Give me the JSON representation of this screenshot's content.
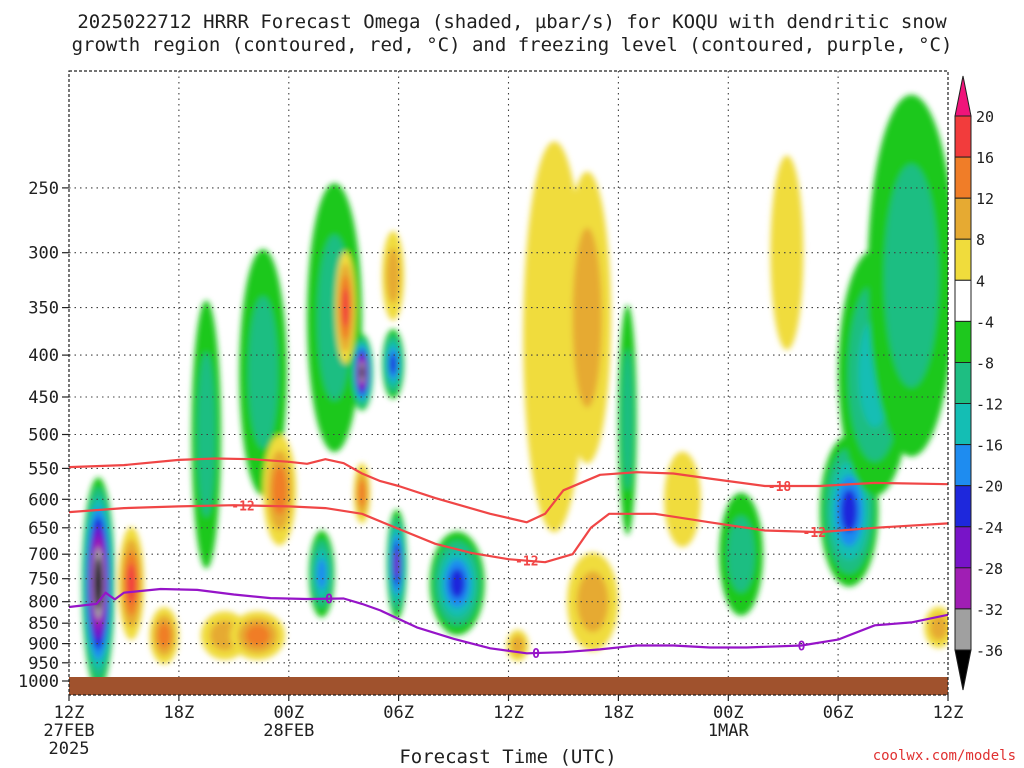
{
  "chart_data": {
    "type": "heatmap",
    "title": "2025022712 HRRR Forecast Omega (shaded, µbar/s) for KOQU with dendritic snow growth region (contoured, red, °C) and freezing level (contoured, purple, °C)",
    "title_lines": [
      "2025022712 HRRR Forecast Omega (shaded, µbar/s) for KOQU with dendritic snow",
      "growth region (contoured, red, °C) and freezing level (contoured, purple, °C)"
    ],
    "xlabel": "Forecast Time (UTC)",
    "ylabel": "",
    "credit": "coolwx.com/models",
    "x_range_hours": [
      0,
      48
    ],
    "y_range_hpa": [
      1040,
      180
    ],
    "y_scale": "log-pressure",
    "grid": true,
    "x_ticks": [
      {
        "hour": 0,
        "label": "12Z",
        "date": "27FEB",
        "year": "2025"
      },
      {
        "hour": 6,
        "label": "18Z",
        "date": "",
        "year": ""
      },
      {
        "hour": 12,
        "label": "00Z",
        "date": "28FEB",
        "year": ""
      },
      {
        "hour": 18,
        "label": "06Z",
        "date": "",
        "year": ""
      },
      {
        "hour": 24,
        "label": "12Z",
        "date": "",
        "year": ""
      },
      {
        "hour": 30,
        "label": "18Z",
        "date": "",
        "year": ""
      },
      {
        "hour": 36,
        "label": "00Z",
        "date": "1MAR",
        "year": ""
      },
      {
        "hour": 42,
        "label": "06Z",
        "date": "",
        "year": ""
      },
      {
        "hour": 48,
        "label": "12Z",
        "date": "",
        "year": ""
      }
    ],
    "y_ticks": [
      250,
      300,
      350,
      400,
      450,
      500,
      550,
      600,
      650,
      700,
      750,
      800,
      850,
      900,
      950,
      1000
    ],
    "colorbar": {
      "labels": [
        "20",
        "16",
        "12",
        "8",
        "4",
        "-4",
        "-8",
        "-12",
        "-16",
        "-20",
        "-24",
        "-28",
        "-32",
        "-36"
      ],
      "bins": [
        {
          "min": 20,
          "max": null,
          "color": "#f0147a"
        },
        {
          "min": 16,
          "max": 20,
          "color": "#f23c3c"
        },
        {
          "min": 12,
          "max": 16,
          "color": "#f07d28"
        },
        {
          "min": 8,
          "max": 12,
          "color": "#e6aa32"
        },
        {
          "min": 4,
          "max": 8,
          "color": "#f0dc3c"
        },
        {
          "min": -4,
          "max": 4,
          "color": "#ffffff"
        },
        {
          "min": -8,
          "max": -4,
          "color": "#1ec81e"
        },
        {
          "min": -12,
          "max": -8,
          "color": "#1ebe82"
        },
        {
          "min": -16,
          "max": -12,
          "color": "#14beb4"
        },
        {
          "min": -20,
          "max": -16,
          "color": "#1e8cf0"
        },
        {
          "min": -24,
          "max": -20,
          "color": "#1e28dc"
        },
        {
          "min": -28,
          "max": -24,
          "color": "#7814c8"
        },
        {
          "min": -32,
          "max": -28,
          "color": "#a01eb4"
        },
        {
          "min": -36,
          "max": -32,
          "color": "#a0a0a0"
        },
        {
          "min": null,
          "max": -36,
          "color": "#000000"
        }
      ]
    },
    "omega_features": [
      {
        "hour": 1.6,
        "pressure": 760,
        "dh": 0.9,
        "dp": 220,
        "value": -40
      },
      {
        "hour": 3.4,
        "pressure": 760,
        "dh": 0.7,
        "dp": 120,
        "value": 18
      },
      {
        "hour": 5.2,
        "pressure": 880,
        "dh": 0.8,
        "dp": 70,
        "value": 12
      },
      {
        "hour": 7.5,
        "pressure": 500,
        "dh": 0.8,
        "dp": 180,
        "value": -11
      },
      {
        "hour": 8.5,
        "pressure": 880,
        "dh": 1.3,
        "dp": 60,
        "value": 10
      },
      {
        "hour": 10.3,
        "pressure": 880,
        "dh": 1.5,
        "dp": 60,
        "value": 12
      },
      {
        "hour": 10.6,
        "pressure": 420,
        "dh": 1.3,
        "dp": 140,
        "value": -10
      },
      {
        "hour": 11.5,
        "pressure": 585,
        "dh": 0.9,
        "dp": 90,
        "value": 14
      },
      {
        "hour": 13.8,
        "pressure": 740,
        "dh": 0.7,
        "dp": 90,
        "value": -18
      },
      {
        "hour": 14.5,
        "pressure": 360,
        "dh": 1.5,
        "dp": 130,
        "value": -10
      },
      {
        "hour": 15.1,
        "pressure": 350,
        "dh": 0.55,
        "dp": 55,
        "value": 18
      },
      {
        "hour": 16.0,
        "pressure": 420,
        "dh": 0.6,
        "dp": 45,
        "value": -38
      },
      {
        "hour": 16.0,
        "pressure": 590,
        "dh": 0.45,
        "dp": 50,
        "value": 12
      },
      {
        "hour": 17.7,
        "pressure": 410,
        "dh": 0.6,
        "dp": 40,
        "value": -20
      },
      {
        "hour": 17.7,
        "pressure": 320,
        "dh": 0.6,
        "dp": 40,
        "value": 10
      },
      {
        "hour": 17.9,
        "pressure": 720,
        "dh": 0.55,
        "dp": 110,
        "value": -24
      },
      {
        "hour": 21.2,
        "pressure": 760,
        "dh": 1.5,
        "dp": 110,
        "value": -22
      },
      {
        "hour": 24.5,
        "pressure": 905,
        "dh": 0.6,
        "dp": 40,
        "value": 10
      },
      {
        "hour": 26.5,
        "pressure": 380,
        "dh": 1.7,
        "dp": 190,
        "value": 7
      },
      {
        "hour": 28.3,
        "pressure": 360,
        "dh": 1.3,
        "dp": 140,
        "value": 11
      },
      {
        "hour": 28.6,
        "pressure": 800,
        "dh": 1.4,
        "dp": 110,
        "value": 10
      },
      {
        "hour": 30.5,
        "pressure": 480,
        "dh": 0.5,
        "dp": 150,
        "value": -9
      },
      {
        "hour": 33.5,
        "pressure": 600,
        "dh": 1.0,
        "dp": 80,
        "value": 5
      },
      {
        "hour": 36.7,
        "pressure": 700,
        "dh": 1.2,
        "dp": 120,
        "value": -9
      },
      {
        "hour": 39.2,
        "pressure": 300,
        "dh": 0.9,
        "dp": 80,
        "value": 6
      },
      {
        "hour": 42.6,
        "pressure": 620,
        "dh": 1.6,
        "dp": 130,
        "value": -22
      },
      {
        "hour": 44.0,
        "pressure": 420,
        "dh": 2.0,
        "dp": 140,
        "value": -15
      },
      {
        "hour": 46.0,
        "pressure": 320,
        "dh": 2.4,
        "dp": 150,
        "value": -10
      },
      {
        "hour": 47.5,
        "pressure": 860,
        "dh": 0.8,
        "dp": 50,
        "value": 8
      }
    ],
    "series": [
      {
        "name": "-18",
        "color": "#f04646",
        "label_hour": 38.8,
        "points": [
          [
            0,
            548
          ],
          [
            3,
            545
          ],
          [
            6,
            537
          ],
          [
            8,
            535
          ],
          [
            10,
            536
          ],
          [
            12,
            540
          ],
          [
            13,
            543
          ],
          [
            14,
            536
          ],
          [
            15,
            542
          ],
          [
            16,
            558
          ],
          [
            17,
            570
          ],
          [
            18,
            578
          ],
          [
            20,
            598
          ],
          [
            23,
            625
          ],
          [
            25,
            640
          ],
          [
            26,
            625
          ],
          [
            27,
            585
          ],
          [
            29,
            560
          ],
          [
            31,
            556
          ],
          [
            33,
            558
          ],
          [
            35,
            566
          ],
          [
            38,
            578
          ],
          [
            41,
            578
          ],
          [
            44,
            573
          ],
          [
            48,
            575
          ]
        ]
      },
      {
        "name": "-12",
        "color": "#f04646",
        "label_hour": 9.5,
        "points": [
          [
            0,
            622
          ],
          [
            3,
            615
          ],
          [
            6,
            612
          ],
          [
            9,
            610
          ],
          [
            12,
            612
          ],
          [
            14,
            615
          ],
          [
            16,
            625
          ],
          [
            18,
            652
          ],
          [
            20,
            680
          ],
          [
            22,
            698
          ],
          [
            24,
            710
          ],
          [
            26,
            716
          ],
          [
            27.5,
            700
          ],
          [
            28.5,
            650
          ],
          [
            29.5,
            625
          ],
          [
            32,
            625
          ],
          [
            35,
            640
          ],
          [
            38,
            655
          ],
          [
            41,
            658
          ],
          [
            44,
            650
          ],
          [
            48,
            642
          ]
        ],
        "extra_labels": [
          25.0,
          40.7
        ]
      },
      {
        "name": "0",
        "color": "#9614c8",
        "label_hour": 14.2,
        "points": [
          [
            0,
            812
          ],
          [
            1.5,
            805
          ],
          [
            2,
            780
          ],
          [
            2.5,
            795
          ],
          [
            3,
            780
          ],
          [
            5,
            772
          ],
          [
            7,
            774
          ],
          [
            9,
            784
          ],
          [
            11,
            792
          ],
          [
            13,
            794
          ],
          [
            15,
            793
          ],
          [
            16,
            805
          ],
          [
            17,
            820
          ],
          [
            19,
            860
          ],
          [
            21,
            888
          ],
          [
            23,
            912
          ],
          [
            25,
            925
          ],
          [
            27,
            922
          ],
          [
            29,
            915
          ],
          [
            31,
            905
          ],
          [
            33,
            905
          ],
          [
            35,
            910
          ],
          [
            37,
            910
          ],
          [
            40,
            905
          ],
          [
            42,
            890
          ],
          [
            44,
            855
          ],
          [
            46,
            848
          ],
          [
            48,
            830
          ]
        ],
        "extra_labels": [
          25.5,
          40.0
        ]
      }
    ]
  },
  "colors": {
    "ground": "#a0522d",
    "grid": "#404040",
    "credit": "#e03030",
    "text": "#202020"
  }
}
